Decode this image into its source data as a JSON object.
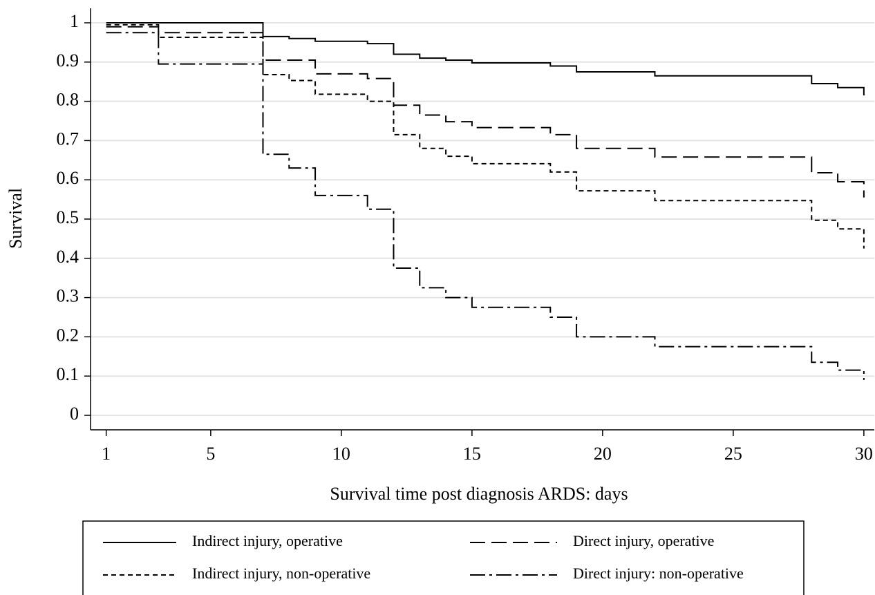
{
  "chart_data": {
    "type": "line",
    "step": "post",
    "x_label": "Survival time post diagnosis ARDS: days",
    "y_label": "Survival",
    "xlim": [
      0.4,
      30.4
    ],
    "ylim": [
      -0.037,
      1.037
    ],
    "xticks": [
      1,
      5,
      10,
      15,
      20,
      25,
      30
    ],
    "yticks": [
      0,
      0.1,
      0.2,
      0.3,
      0.4,
      0.5,
      0.6,
      0.7,
      0.8,
      0.9,
      1
    ],
    "grid": true,
    "legend": "bottom",
    "series": [
      {
        "name": "Indirect injury, operative",
        "color": "#000000",
        "line_style": "solid",
        "x": [
          1,
          7,
          8,
          9,
          11,
          12,
          13,
          14,
          15,
          18,
          19,
          22,
          28,
          29,
          30
        ],
        "values": [
          1.0,
          0.965,
          0.96,
          0.953,
          0.947,
          0.92,
          0.91,
          0.905,
          0.898,
          0.89,
          0.875,
          0.865,
          0.845,
          0.835,
          0.815
        ]
      },
      {
        "name": "Direct injury, operative",
        "color": "#000000",
        "line_style": "dashed",
        "x": [
          1,
          3,
          7,
          9,
          11,
          12,
          13,
          14,
          15,
          18,
          19,
          22,
          28,
          29,
          30
        ],
        "values": [
          0.99,
          0.975,
          0.905,
          0.87,
          0.858,
          0.79,
          0.765,
          0.748,
          0.733,
          0.715,
          0.68,
          0.658,
          0.618,
          0.595,
          0.555
        ]
      },
      {
        "name": "Indirect injury, non-operative",
        "color": "#000000",
        "line_style": "dotted",
        "x": [
          1,
          3,
          7,
          8,
          9,
          11,
          12,
          13,
          14,
          15,
          18,
          19,
          22,
          28,
          29,
          30
        ],
        "values": [
          0.995,
          0.963,
          0.868,
          0.853,
          0.818,
          0.8,
          0.715,
          0.68,
          0.66,
          0.641,
          0.62,
          0.572,
          0.547,
          0.497,
          0.475,
          0.425
        ]
      },
      {
        "name": "Direct injury: non-operative",
        "color": "#000000",
        "line_style": "dashdot",
        "x": [
          1,
          3,
          7,
          8,
          9,
          11,
          12,
          13,
          14,
          15,
          18,
          19,
          22,
          28,
          29,
          30
        ],
        "values": [
          0.975,
          0.895,
          0.665,
          0.63,
          0.56,
          0.525,
          0.375,
          0.325,
          0.3,
          0.275,
          0.25,
          0.2,
          0.175,
          0.135,
          0.115,
          0.09
        ]
      }
    ]
  }
}
